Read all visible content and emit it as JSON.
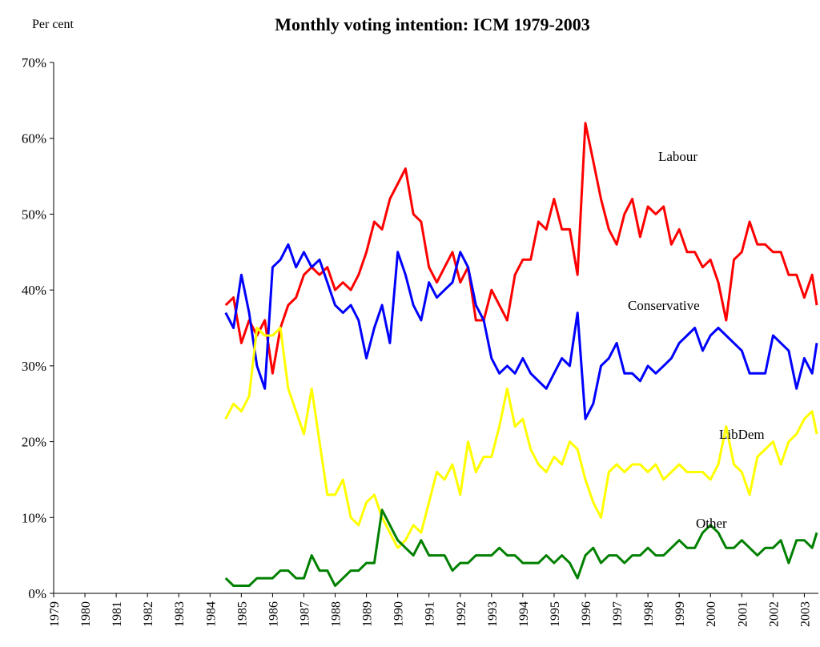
{
  "chart_data": {
    "type": "line",
    "title": "Monthly voting intention: ICM 1979-2003",
    "y_label": "Per cent",
    "x": [
      1984.5,
      1984.75,
      1985,
      1985.25,
      1985.5,
      1985.75,
      1986,
      1986.25,
      1986.5,
      1986.75,
      1987,
      1987.25,
      1987.5,
      1987.75,
      1988,
      1988.25,
      1988.5,
      1988.75,
      1989,
      1989.25,
      1989.5,
      1989.75,
      1990,
      1990.25,
      1990.5,
      1990.75,
      1991,
      1991.25,
      1991.5,
      1991.75,
      1992,
      1992.25,
      1992.5,
      1992.75,
      1993,
      1993.25,
      1993.5,
      1993.75,
      1994,
      1994.25,
      1994.5,
      1994.75,
      1995,
      1995.25,
      1995.5,
      1995.75,
      1996,
      1996.25,
      1996.5,
      1996.75,
      1997,
      1997.25,
      1997.5,
      1997.75,
      1998,
      1998.25,
      1998.5,
      1998.75,
      1999,
      1999.25,
      1999.5,
      1999.75,
      2000,
      2000.25,
      2000.5,
      2000.75,
      2001,
      2001.25,
      2001.5,
      2001.75,
      2002,
      2002.25,
      2002.5,
      2002.75,
      2003,
      2003.25,
      2003.4
    ],
    "series": [
      {
        "name": "Labour",
        "color": "#ff0000",
        "values": [
          38,
          39,
          33,
          36,
          34,
          36,
          29,
          35,
          38,
          39,
          42,
          43,
          42,
          43,
          40,
          41,
          40,
          42,
          45,
          49,
          48,
          52,
          54,
          56,
          50,
          49,
          43,
          41,
          43,
          45,
          41,
          43,
          36,
          36,
          40,
          38,
          36,
          42,
          44,
          44,
          49,
          48,
          52,
          48,
          48,
          42,
          62,
          57,
          52,
          48,
          46,
          50,
          52,
          47,
          51,
          50,
          51,
          46,
          48,
          45,
          45,
          43,
          44,
          41,
          36,
          44,
          45,
          49,
          46,
          46,
          45,
          45,
          42,
          42,
          39,
          42,
          38
        ]
      },
      {
        "name": "Conservative",
        "color": "#0000ff",
        "values": [
          37,
          35,
          42,
          37,
          30,
          27,
          43,
          44,
          46,
          43,
          45,
          43,
          44,
          41,
          38,
          37,
          38,
          36,
          31,
          35,
          38,
          33,
          45,
          42,
          38,
          36,
          41,
          39,
          40,
          41,
          45,
          43,
          38,
          36,
          31,
          29,
          30,
          29,
          31,
          29,
          28,
          27,
          29,
          31,
          30,
          37,
          23,
          25,
          30,
          31,
          33,
          29,
          29,
          28,
          30,
          29,
          30,
          31,
          33,
          34,
          35,
          32,
          34,
          35,
          34,
          33,
          32,
          29,
          29,
          29,
          34,
          33,
          32,
          27,
          31,
          29,
          33
        ]
      },
      {
        "name": "LibDem",
        "color": "#ffff00",
        "values": [
          23,
          25,
          24,
          26,
          35,
          34,
          34,
          35,
          27,
          24,
          21,
          27,
          20,
          13,
          13,
          15,
          10,
          9,
          12,
          13,
          10,
          8,
          6,
          7,
          9,
          8,
          12,
          16,
          15,
          17,
          13,
          20,
          16,
          18,
          18,
          22,
          27,
          22,
          23,
          19,
          17,
          16,
          18,
          17,
          20,
          19,
          15,
          12,
          10,
          16,
          17,
          16,
          17,
          17,
          16,
          17,
          15,
          16,
          17,
          16,
          16,
          16,
          15,
          17,
          22,
          17,
          16,
          13,
          18,
          19,
          20,
          17,
          20,
          21,
          23,
          24,
          21
        ]
      },
      {
        "name": "Other",
        "color": "#008000",
        "values": [
          2,
          1,
          1,
          1,
          2,
          2,
          2,
          3,
          3,
          2,
          2,
          5,
          3,
          3,
          1,
          2,
          3,
          3,
          4,
          4,
          11,
          9,
          7,
          6,
          5,
          7,
          5,
          5,
          5,
          3,
          4,
          4,
          5,
          5,
          5,
          6,
          5,
          5,
          4,
          4,
          4,
          5,
          4,
          5,
          4,
          2,
          5,
          6,
          4,
          5,
          5,
          4,
          5,
          5,
          6,
          5,
          5,
          6,
          7,
          6,
          6,
          8,
          9,
          8,
          6,
          6,
          7,
          6,
          5,
          6,
          6,
          7,
          4,
          7,
          7,
          6,
          8
        ]
      }
    ],
    "xlim": [
      1979,
      2003.45
    ],
    "xticks": [
      1979,
      1980,
      1981,
      1982,
      1983,
      1984,
      1985,
      1986,
      1987,
      1988,
      1989,
      1990,
      1991,
      1992,
      1993,
      1994,
      1995,
      1996,
      1997,
      1998,
      1999,
      2000,
      2001,
      2002,
      2003
    ],
    "ylim": [
      0,
      70
    ],
    "yticks": [
      {
        "value": 0,
        "label": "0%"
      },
      {
        "value": 10,
        "label": "10%"
      },
      {
        "value": 20,
        "label": "20%"
      },
      {
        "value": 30,
        "label": "30%"
      },
      {
        "value": 40,
        "label": "40%"
      },
      {
        "value": 50,
        "label": "50%"
      },
      {
        "value": 60,
        "label": "60%"
      },
      {
        "value": 70,
        "label": "70%"
      }
    ]
  }
}
